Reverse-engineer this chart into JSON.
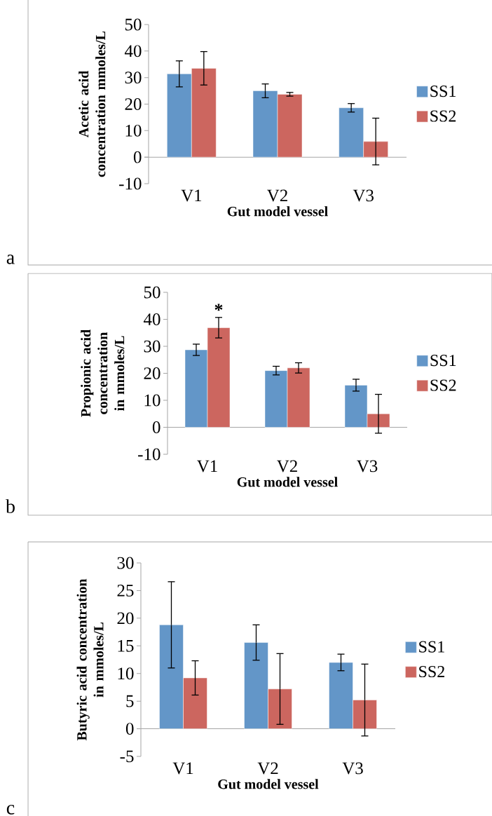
{
  "chart_data": [
    {
      "type": "bar",
      "xlabel": "Gut model vessel",
      "ylabel": "Acetic acid concentration mmoles/L",
      "categories": [
        "V1",
        "V2",
        "V3"
      ],
      "series": [
        {
          "name": "SS1",
          "color": "#6396c8",
          "values": [
            31.4,
            25.0,
            18.6
          ],
          "errors": [
            4.9,
            2.6,
            1.6
          ]
        },
        {
          "name": "SS2",
          "color": "#cc665f",
          "values": [
            33.5,
            23.7,
            5.9
          ],
          "errors": [
            6.3,
            0.7,
            8.8
          ]
        }
      ],
      "ylim": [
        -10,
        50
      ],
      "yticks": [
        -10,
        0,
        10,
        20,
        30,
        40,
        50
      ],
      "legend": "right",
      "annotations": [
        "a"
      ]
    },
    {
      "type": "bar",
      "xlabel": "Gut model vessel",
      "ylabel": "Propionic acid concentration in mmoles/L",
      "categories": [
        "V1",
        "V2",
        "V3"
      ],
      "series": [
        {
          "name": "SS1",
          "color": "#6396c8",
          "values": [
            28.7,
            21.0,
            15.6
          ],
          "errors": [
            2.1,
            1.6,
            2.2
          ]
        },
        {
          "name": "SS2",
          "color": "#cc665f",
          "values": [
            36.9,
            22.0,
            5.0
          ],
          "errors": [
            3.8,
            1.9,
            7.2
          ]
        }
      ],
      "ylim": [
        -10,
        50
      ],
      "yticks": [
        -10,
        0,
        10,
        20,
        30,
        40,
        50
      ],
      "legend": "right",
      "annotations": [
        "*",
        "b"
      ]
    },
    {
      "type": "bar",
      "xlabel": "Gut model vessel",
      "ylabel": "Butyric acid concentration in mmoles/L",
      "categories": [
        "V1",
        "V2",
        "V3"
      ],
      "series": [
        {
          "name": "SS1",
          "color": "#6396c8",
          "values": [
            18.8,
            15.6,
            12.0
          ],
          "errors": [
            7.8,
            3.2,
            1.5
          ]
        },
        {
          "name": "SS2",
          "color": "#cc665f",
          "values": [
            9.2,
            7.2,
            5.2
          ],
          "errors": [
            3.1,
            6.4,
            6.5
          ]
        }
      ],
      "ylim": [
        -5,
        30
      ],
      "yticks": [
        -5,
        0,
        5,
        10,
        15,
        20,
        25,
        30
      ],
      "legend": "right",
      "annotations": [
        "c"
      ]
    }
  ]
}
